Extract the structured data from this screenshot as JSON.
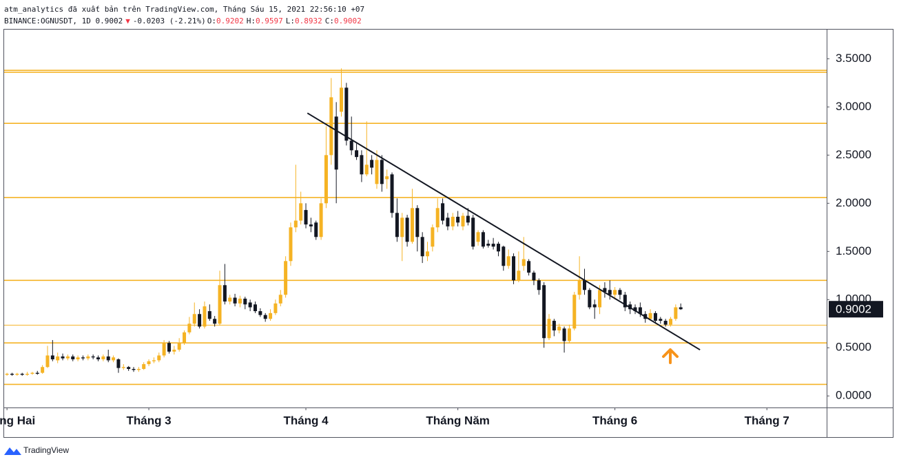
{
  "chart_data": {
    "type": "candlestick",
    "header": {
      "publisher": "atm_analytics đã xuất bản trên TradingView.com, Tháng Sáu 15, 2021 22:56:10 +07",
      "symbol": "BINANCE:OGNUSDT, 1D 0.9002",
      "arrow": "▼",
      "change": "-0.0203 (-2.21%)",
      "ohlc": [
        {
          "label": "O:",
          "value": "0.9202"
        },
        {
          "label": "H:",
          "value": "0.9597"
        },
        {
          "label": "L:",
          "value": "0.8932"
        },
        {
          "label": "C:",
          "value": "0.9002"
        }
      ],
      "value_color": "#f23645"
    },
    "up_color": "#f5b324",
    "down_color": "#131722",
    "open": [
      0.22,
      0.23,
      0.22,
      0.23,
      0.22,
      0.23,
      0.24,
      0.24,
      0.3,
      0.42,
      0.37,
      0.41,
      0.39,
      0.41,
      0.38,
      0.4,
      0.39,
      0.41,
      0.4,
      0.38,
      0.41,
      0.37,
      0.38,
      0.29,
      0.3,
      0.28,
      0.27,
      0.28,
      0.33,
      0.36,
      0.37,
      0.42,
      0.55,
      0.46,
      0.48,
      0.55,
      0.66,
      0.75,
      0.85,
      0.72,
      0.88,
      0.8,
      0.75,
      1.15,
      0.98,
      1.02,
      0.96,
      1.01,
      0.97,
      0.95,
      0.88,
      0.84,
      0.8,
      0.86,
      0.96,
      1.05,
      1.4,
      1.75,
      1.82,
      1.93,
      1.78,
      1.8,
      1.65,
      2.0,
      2.5,
      2.9,
      2.95,
      3.2,
      2.65,
      2.55,
      2.5,
      2.3,
      2.45,
      2.2,
      2.45,
      2.25,
      2.3,
      1.9,
      1.65,
      1.85,
      1.6,
      1.95,
      1.65,
      1.45,
      1.55,
      1.75,
      2.0,
      1.85,
      1.76,
      1.86,
      1.76,
      1.87,
      1.85,
      1.6,
      1.7,
      1.58,
      1.58,
      1.58,
      1.55,
      1.35,
      1.45,
      1.2,
      1.35,
      1.4,
      1.28,
      1.2,
      1.15,
      0.6,
      0.78,
      0.68,
      0.7,
      0.57,
      0.7,
      1.05,
      1.2,
      1.1,
      0.95,
      0.92,
      1.12,
      1.1,
      1.05,
      1.1,
      1.05,
      0.95,
      0.92,
      0.92,
      0.85,
      0.8,
      0.86,
      0.8,
      0.78,
      0.74,
      0.8,
      0.9202
    ],
    "high": [
      0.24,
      0.24,
      0.24,
      0.24,
      0.25,
      0.25,
      0.26,
      0.32,
      0.52,
      0.58,
      0.45,
      0.44,
      0.43,
      0.43,
      0.42,
      0.42,
      0.43,
      0.43,
      0.42,
      0.43,
      0.48,
      0.42,
      0.39,
      0.33,
      0.31,
      0.3,
      0.3,
      0.35,
      0.38,
      0.4,
      0.45,
      0.58,
      0.57,
      0.52,
      0.6,
      0.68,
      0.82,
      0.97,
      0.9,
      0.98,
      0.95,
      0.83,
      1.3,
      1.37,
      1.05,
      1.06,
      1.04,
      1.03,
      1.0,
      0.98,
      0.91,
      0.86,
      0.9,
      1.0,
      1.1,
      1.45,
      1.8,
      2.4,
      2.12,
      2.0,
      1.85,
      1.82,
      2.05,
      2.8,
      3.3,
      3.05,
      3.4,
      3.25,
      2.9,
      2.62,
      2.55,
      2.85,
      2.5,
      2.55,
      2.5,
      2.35,
      2.32,
      2.05,
      1.9,
      1.88,
      2.15,
      1.98,
      1.7,
      1.6,
      1.78,
      2.05,
      2.05,
      1.9,
      1.9,
      1.92,
      1.9,
      1.95,
      1.88,
      1.72,
      1.72,
      1.62,
      1.64,
      1.6,
      1.56,
      1.52,
      1.48,
      1.5,
      1.65,
      1.42,
      1.3,
      1.22,
      1.18,
      0.85,
      0.8,
      0.75,
      0.72,
      0.74,
      1.08,
      1.45,
      1.32,
      1.12,
      1.0,
      1.15,
      1.18,
      1.2,
      1.13,
      1.12,
      1.08,
      0.98,
      0.95,
      0.97,
      0.88,
      0.9,
      0.88,
      0.82,
      0.8,
      0.82,
      0.95,
      0.9597
    ],
    "low": [
      0.21,
      0.21,
      0.21,
      0.21,
      0.21,
      0.22,
      0.22,
      0.23,
      0.29,
      0.36,
      0.34,
      0.37,
      0.37,
      0.36,
      0.36,
      0.37,
      0.37,
      0.38,
      0.36,
      0.36,
      0.35,
      0.35,
      0.24,
      0.27,
      0.26,
      0.25,
      0.25,
      0.27,
      0.31,
      0.34,
      0.35,
      0.4,
      0.44,
      0.43,
      0.46,
      0.53,
      0.64,
      0.72,
      0.7,
      0.7,
      0.78,
      0.72,
      0.73,
      0.95,
      0.95,
      0.93,
      0.92,
      0.9,
      0.88,
      0.86,
      0.82,
      0.77,
      0.78,
      0.84,
      0.93,
      1.02,
      1.35,
      1.7,
      1.78,
      1.74,
      1.7,
      1.62,
      1.62,
      1.95,
      2.4,
      2.0,
      2.9,
      2.6,
      2.5,
      2.45,
      2.22,
      2.28,
      2.3,
      2.15,
      2.12,
      2.15,
      1.85,
      1.6,
      1.4,
      1.55,
      1.58,
      1.5,
      1.38,
      1.4,
      1.5,
      1.7,
      1.78,
      1.72,
      1.72,
      1.76,
      1.72,
      1.77,
      1.52,
      1.56,
      1.53,
      1.54,
      1.52,
      1.45,
      1.3,
      1.32,
      1.16,
      1.18,
      1.3,
      1.25,
      1.15,
      1.05,
      0.5,
      0.58,
      0.62,
      0.65,
      0.45,
      0.55,
      0.68,
      1.0,
      1.05,
      0.9,
      0.8,
      0.85,
      1.02,
      1.0,
      1.0,
      1.0,
      0.88,
      0.85,
      0.85,
      0.82,
      0.76,
      0.78,
      0.75,
      0.75,
      0.72,
      0.72,
      0.78,
      0.8932
    ],
    "close": [
      0.23,
      0.22,
      0.23,
      0.22,
      0.23,
      0.24,
      0.23,
      0.3,
      0.42,
      0.38,
      0.41,
      0.39,
      0.41,
      0.38,
      0.4,
      0.39,
      0.41,
      0.4,
      0.38,
      0.41,
      0.37,
      0.4,
      0.29,
      0.3,
      0.28,
      0.27,
      0.28,
      0.33,
      0.36,
      0.37,
      0.42,
      0.55,
      0.46,
      0.48,
      0.55,
      0.66,
      0.75,
      0.85,
      0.72,
      0.93,
      0.8,
      0.75,
      1.15,
      0.98,
      1.02,
      0.96,
      1.01,
      0.95,
      0.92,
      0.88,
      0.84,
      0.8,
      0.86,
      0.96,
      1.05,
      1.4,
      1.75,
      1.82,
      2.0,
      1.78,
      1.76,
      1.65,
      2.0,
      2.5,
      3.1,
      2.35,
      3.2,
      2.65,
      2.55,
      2.48,
      2.3,
      2.4,
      2.37,
      2.45,
      2.2,
      2.28,
      1.9,
      1.65,
      1.85,
      1.6,
      1.95,
      1.65,
      1.45,
      1.5,
      1.75,
      1.95,
      1.82,
      1.76,
      1.86,
      1.8,
      1.87,
      1.8,
      1.55,
      1.7,
      1.55,
      1.56,
      1.55,
      1.5,
      1.35,
      1.45,
      1.2,
      1.3,
      1.42,
      1.28,
      1.2,
      1.1,
      0.6,
      0.8,
      0.68,
      0.72,
      0.57,
      0.7,
      1.05,
      1.2,
      1.1,
      0.92,
      0.92,
      1.1,
      1.08,
      1.05,
      1.1,
      1.05,
      0.92,
      0.9,
      0.88,
      0.85,
      0.8,
      0.86,
      0.78,
      0.78,
      0.74,
      0.8,
      0.92,
      0.9002
    ],
    "xlim": [
      -0.7,
      161.8
    ],
    "xticks": [
      {
        "value": 0,
        "label": "Tháng Hai"
      },
      {
        "value": 28,
        "label": "Tháng 3"
      },
      {
        "value": 59,
        "label": "Tháng 4"
      },
      {
        "value": 89,
        "label": "Tháng Năm"
      },
      {
        "value": 120,
        "label": "Tháng 6"
      },
      {
        "value": 150,
        "label": "Tháng 7"
      }
    ],
    "ylim": [
      -0.12,
      3.81
    ],
    "yticks": [
      {
        "value": 0,
        "label": "0.0000"
      },
      {
        "value": 0.5,
        "label": "0.5000"
      },
      {
        "value": 1,
        "label": "1.0000"
      },
      {
        "value": 1.5,
        "label": "1.5000"
      },
      {
        "value": 2,
        "label": "2.0000"
      },
      {
        "value": 2.5,
        "label": "2.5000"
      },
      {
        "value": 3,
        "label": "3.0000"
      },
      {
        "value": 3.5,
        "label": "3.5000"
      }
    ],
    "levels": [
      3.38,
      3.36,
      2.83,
      2.06,
      1.2,
      0.735,
      0.55,
      0.12
    ],
    "level_color": "#f5b324",
    "trendline": {
      "x": [
        59.3,
        136.8
      ],
      "values": [
        2.936,
        0.479
      ],
      "color": "#131722"
    },
    "last_price": 0.9002
  },
  "footer": {
    "brand": "TradingView"
  }
}
